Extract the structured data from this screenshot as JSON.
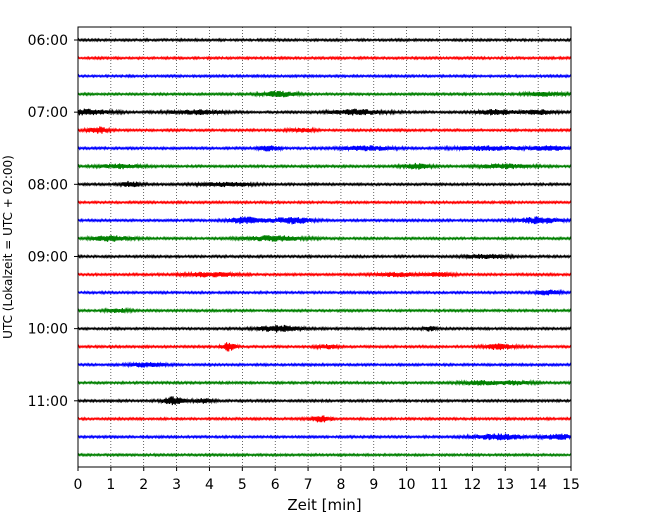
{
  "chart_data": {
    "type": "line",
    "subtype": "helicorder (seismogram drum plot)",
    "xlabel": "Zeit  [min]",
    "ylabel": "UTC (Lokalzeit = UTC + 02:00)",
    "x_ticks": [
      0,
      1,
      2,
      3,
      4,
      5,
      6,
      7,
      8,
      9,
      10,
      11,
      12,
      13,
      14,
      15
    ],
    "xlim": [
      0,
      15
    ],
    "y_tick_labels": [
      "06:00",
      "07:00",
      "08:00",
      "09:00",
      "10:00",
      "11:00"
    ],
    "minutes_per_trace": 15,
    "vertical_grid": true,
    "grid_style": "dotted",
    "trace_color_cycle": [
      "#000000",
      "#ff0000",
      "#0000ff",
      "#008000"
    ],
    "traces": [
      {
        "start": "06:00",
        "bursts": []
      },
      {
        "start": "06:15",
        "bursts": []
      },
      {
        "start": "06:30",
        "bursts": []
      },
      {
        "start": "06:45",
        "bursts": [
          [
            6.1,
            0.5,
            2.5
          ],
          [
            14.2,
            0.6,
            1.8
          ]
        ]
      },
      {
        "start": "07:00",
        "bursts": [
          [
            0.2,
            0.8,
            2.5
          ],
          [
            3.6,
            0.8,
            2.0
          ],
          [
            8.5,
            0.8,
            2.5
          ],
          [
            12.7,
            0.5,
            2.5
          ],
          [
            14.0,
            0.5,
            2.0
          ]
        ]
      },
      {
        "start": "07:15",
        "bursts": [
          [
            0.6,
            0.3,
            3.0
          ],
          [
            6.8,
            0.4,
            1.5
          ]
        ]
      },
      {
        "start": "07:30",
        "bursts": [
          [
            5.8,
            0.3,
            2.5
          ],
          [
            8.8,
            0.8,
            2.0
          ],
          [
            12.5,
            1.0,
            2.0
          ],
          [
            14.3,
            0.6,
            2.0
          ]
        ]
      },
      {
        "start": "07:45",
        "bursts": [
          [
            1.3,
            0.6,
            2.0
          ],
          [
            10.3,
            0.4,
            2.5
          ],
          [
            13.0,
            0.8,
            2.0
          ]
        ]
      },
      {
        "start": "08:00",
        "bursts": [
          [
            1.6,
            0.3,
            2.5
          ],
          [
            4.5,
            0.8,
            1.8
          ]
        ]
      },
      {
        "start": "08:15",
        "bursts": []
      },
      {
        "start": "08:30",
        "bursts": [
          [
            5.1,
            0.5,
            3.0
          ],
          [
            6.5,
            0.6,
            3.0
          ],
          [
            14.0,
            0.6,
            3.0
          ]
        ]
      },
      {
        "start": "08:45",
        "bursts": [
          [
            1.0,
            0.6,
            2.5
          ],
          [
            6.0,
            0.9,
            2.5
          ]
        ]
      },
      {
        "start": "09:00",
        "bursts": [
          [
            12.4,
            0.6,
            2.0
          ]
        ]
      },
      {
        "start": "09:15",
        "bursts": [
          [
            4.0,
            0.8,
            2.0
          ],
          [
            9.7,
            0.6,
            1.8
          ],
          [
            11.0,
            0.4,
            1.8
          ]
        ]
      },
      {
        "start": "09:30",
        "bursts": [
          [
            14.3,
            0.4,
            2.0
          ]
        ]
      },
      {
        "start": "09:45",
        "bursts": [
          [
            1.2,
            0.3,
            2.0
          ]
        ]
      },
      {
        "start": "10:00",
        "bursts": [
          [
            6.1,
            0.6,
            3.0
          ],
          [
            10.7,
            0.2,
            2.0
          ]
        ]
      },
      {
        "start": "10:15",
        "bursts": [
          [
            4.6,
            0.2,
            4.0
          ],
          [
            7.6,
            0.3,
            2.0
          ],
          [
            12.8,
            0.5,
            2.5
          ]
        ]
      },
      {
        "start": "10:30",
        "bursts": [
          [
            2.1,
            0.5,
            2.0
          ]
        ]
      },
      {
        "start": "10:45",
        "bursts": [
          [
            12.2,
            0.5,
            2.0
          ],
          [
            13.3,
            0.5,
            1.8
          ]
        ]
      },
      {
        "start": "11:00",
        "bursts": [
          [
            2.9,
            0.3,
            4.0
          ],
          [
            3.8,
            0.3,
            2.0
          ]
        ]
      },
      {
        "start": "11:15",
        "bursts": [
          [
            7.4,
            0.3,
            3.0
          ]
        ]
      },
      {
        "start": "11:30",
        "bursts": [
          [
            12.8,
            0.8,
            2.5
          ],
          [
            14.6,
            0.4,
            2.5
          ]
        ]
      },
      {
        "start": "11:45",
        "bursts": []
      }
    ]
  }
}
